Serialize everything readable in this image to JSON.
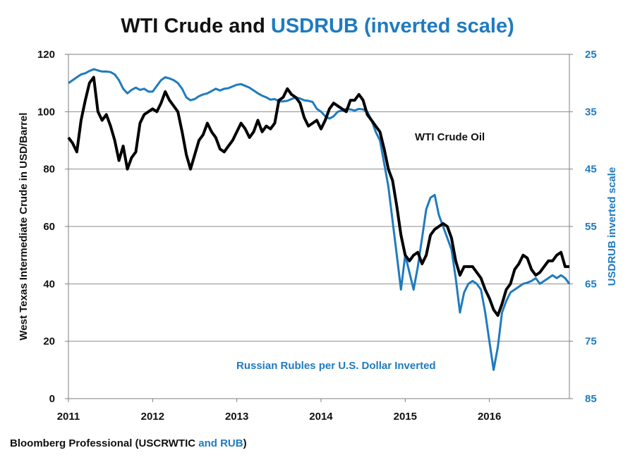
{
  "chart_data": {
    "type": "line",
    "title": {
      "part1": "WTI Crude and ",
      "part2": "USDRUB (inverted scale)"
    },
    "ylabel_left": "West Texas Intermediate Crude in USD/Barrel",
    "ylabel_right": "USDRUB inverted scale",
    "x_ticks": [
      "2011",
      "2012",
      "2013",
      "2014",
      "2015",
      "2016"
    ],
    "y_left_ticks": [
      "0",
      "20",
      "40",
      "60",
      "80",
      "100",
      "120"
    ],
    "y_right_ticks": [
      "25",
      "35",
      "45",
      "55",
      "65",
      "75",
      "85"
    ],
    "xlim": [
      2011.0,
      2016.95
    ],
    "ylim_left": [
      0,
      120
    ],
    "ylim_right_inverted": [
      85,
      25
    ],
    "grid": "horizontal",
    "colors": {
      "wti": "#000000",
      "rub": "#1f7bbf"
    },
    "annotations": {
      "wti": "WTI Crude Oil",
      "rub": "Russian Rubles per U.S. Dollar Inverted"
    },
    "series": [
      {
        "name": "WTI Crude Oil",
        "axis": "left",
        "x": [
          2011.0,
          2011.05,
          2011.1,
          2011.15,
          2011.2,
          2011.25,
          2011.3,
          2011.35,
          2011.4,
          2011.45,
          2011.5,
          2011.55,
          2011.6,
          2011.65,
          2011.7,
          2011.75,
          2011.8,
          2011.85,
          2011.9,
          2011.95,
          2012.0,
          2012.05,
          2012.1,
          2012.15,
          2012.2,
          2012.25,
          2012.3,
          2012.35,
          2012.4,
          2012.45,
          2012.5,
          2012.55,
          2012.6,
          2012.65,
          2012.7,
          2012.75,
          2012.8,
          2012.85,
          2012.9,
          2012.95,
          2013.0,
          2013.05,
          2013.1,
          2013.15,
          2013.2,
          2013.25,
          2013.3,
          2013.35,
          2013.4,
          2013.45,
          2013.5,
          2013.55,
          2013.6,
          2013.65,
          2013.7,
          2013.75,
          2013.8,
          2013.85,
          2013.9,
          2013.95,
          2014.0,
          2014.05,
          2014.1,
          2014.15,
          2014.2,
          2014.25,
          2014.3,
          2014.35,
          2014.4,
          2014.45,
          2014.5,
          2014.55,
          2014.6,
          2014.65,
          2014.7,
          2014.75,
          2014.8,
          2014.85,
          2014.9,
          2014.95,
          2015.0,
          2015.05,
          2015.1,
          2015.15,
          2015.2,
          2015.25,
          2015.3,
          2015.35,
          2015.4,
          2015.45,
          2015.5,
          2015.55,
          2015.6,
          2015.65,
          2015.7,
          2015.75,
          2015.8,
          2015.85,
          2015.9,
          2015.95,
          2016.0,
          2016.05,
          2016.1,
          2016.15,
          2016.2,
          2016.25,
          2016.3,
          2016.35,
          2016.4,
          2016.45,
          2016.5,
          2016.55,
          2016.6,
          2016.65,
          2016.7,
          2016.75,
          2016.8,
          2016.85,
          2016.9,
          2016.95
        ],
        "values": [
          91,
          89,
          86,
          97,
          104,
          110,
          112,
          100,
          97,
          99,
          95,
          90,
          83,
          88,
          80,
          84,
          86,
          96,
          99,
          100,
          101,
          100,
          103,
          107,
          104,
          102,
          100,
          93,
          85,
          80,
          85,
          90,
          92,
          96,
          93,
          91,
          87,
          86,
          88,
          90,
          93,
          96,
          94,
          91,
          93,
          97,
          93,
          95,
          94,
          96,
          104,
          105,
          108,
          106,
          105,
          103,
          98,
          95,
          96,
          97,
          94,
          97,
          101,
          103,
          102,
          101,
          100,
          104,
          104,
          106,
          104,
          99,
          97,
          95,
          93,
          87,
          80,
          76,
          67,
          57,
          50,
          48,
          50,
          51,
          47,
          50,
          57,
          59,
          60,
          61,
          60,
          56,
          48,
          43,
          46,
          46,
          46,
          44,
          42,
          38,
          35,
          31,
          29,
          33,
          38,
          40,
          45,
          47,
          50,
          49,
          45,
          43,
          44,
          46,
          48,
          48,
          50,
          51,
          46,
          46
        ]
      },
      {
        "name": "Russian Rubles per U.S. Dollar Inverted",
        "axis": "right",
        "x": [
          2011.0,
          2011.05,
          2011.1,
          2011.15,
          2011.2,
          2011.25,
          2011.3,
          2011.35,
          2011.4,
          2011.45,
          2011.5,
          2011.55,
          2011.6,
          2011.65,
          2011.7,
          2011.75,
          2011.8,
          2011.85,
          2011.9,
          2011.95,
          2012.0,
          2012.05,
          2012.1,
          2012.15,
          2012.2,
          2012.25,
          2012.3,
          2012.35,
          2012.4,
          2012.45,
          2012.5,
          2012.55,
          2012.6,
          2012.65,
          2012.7,
          2012.75,
          2012.8,
          2012.85,
          2012.9,
          2012.95,
          2013.0,
          2013.05,
          2013.1,
          2013.15,
          2013.2,
          2013.25,
          2013.3,
          2013.35,
          2013.4,
          2013.45,
          2013.5,
          2013.55,
          2013.6,
          2013.65,
          2013.7,
          2013.75,
          2013.8,
          2013.85,
          2013.9,
          2013.95,
          2014.0,
          2014.05,
          2014.1,
          2014.15,
          2014.2,
          2014.25,
          2014.3,
          2014.35,
          2014.4,
          2014.45,
          2014.5,
          2014.55,
          2014.6,
          2014.65,
          2014.7,
          2014.75,
          2014.8,
          2014.85,
          2014.9,
          2014.95,
          2015.0,
          2015.05,
          2015.1,
          2015.15,
          2015.2,
          2015.25,
          2015.3,
          2015.35,
          2015.4,
          2015.45,
          2015.5,
          2015.55,
          2015.6,
          2015.65,
          2015.7,
          2015.75,
          2015.8,
          2015.85,
          2015.9,
          2015.95,
          2016.0,
          2016.05,
          2016.1,
          2016.15,
          2016.2,
          2016.25,
          2016.3,
          2016.35,
          2016.4,
          2016.45,
          2016.5,
          2016.55,
          2016.6,
          2016.65,
          2016.7,
          2016.75,
          2016.8,
          2016.85,
          2016.9,
          2016.95
        ],
        "values": [
          30.0,
          29.5,
          29.0,
          28.5,
          28.3,
          27.9,
          27.6,
          27.8,
          28.0,
          28.0,
          28.1,
          28.5,
          29.5,
          31.0,
          31.8,
          31.2,
          30.8,
          31.2,
          31.0,
          31.5,
          31.5,
          30.5,
          29.5,
          29.0,
          29.2,
          29.5,
          30.0,
          31.0,
          32.5,
          33.0,
          32.8,
          32.3,
          32.0,
          31.8,
          31.4,
          31.0,
          31.3,
          31.0,
          30.9,
          30.6,
          30.3,
          30.2,
          30.5,
          30.8,
          31.3,
          31.8,
          32.2,
          32.5,
          32.9,
          32.8,
          33.2,
          33.2,
          33.1,
          32.8,
          32.5,
          32.7,
          33.0,
          33.1,
          33.3,
          34.5,
          35.0,
          35.8,
          36.2,
          35.8,
          35.0,
          34.8,
          34.5,
          34.6,
          34.8,
          34.5,
          34.6,
          35.0,
          36.5,
          38.5,
          40.0,
          44.0,
          48.0,
          54.0,
          60.0,
          66.0,
          60.0,
          63.0,
          66.0,
          62.0,
          57.0,
          52.0,
          50.0,
          49.5,
          53.0,
          55.0,
          57.0,
          59.0,
          64.0,
          70.0,
          66.5,
          65.0,
          64.5,
          65.0,
          66.0,
          70.0,
          75.0,
          80.0,
          76.0,
          70.0,
          68.0,
          66.5,
          66.0,
          65.5,
          65.0,
          64.8,
          64.5,
          64.0,
          65.0,
          64.5,
          64.0,
          63.5,
          64.0,
          63.5,
          64.0,
          65.0
        ]
      }
    ]
  },
  "source": {
    "part1": "Bloomberg Professional  (USCRWTIC ",
    "part2": "and RUB",
    "part3": ")"
  }
}
